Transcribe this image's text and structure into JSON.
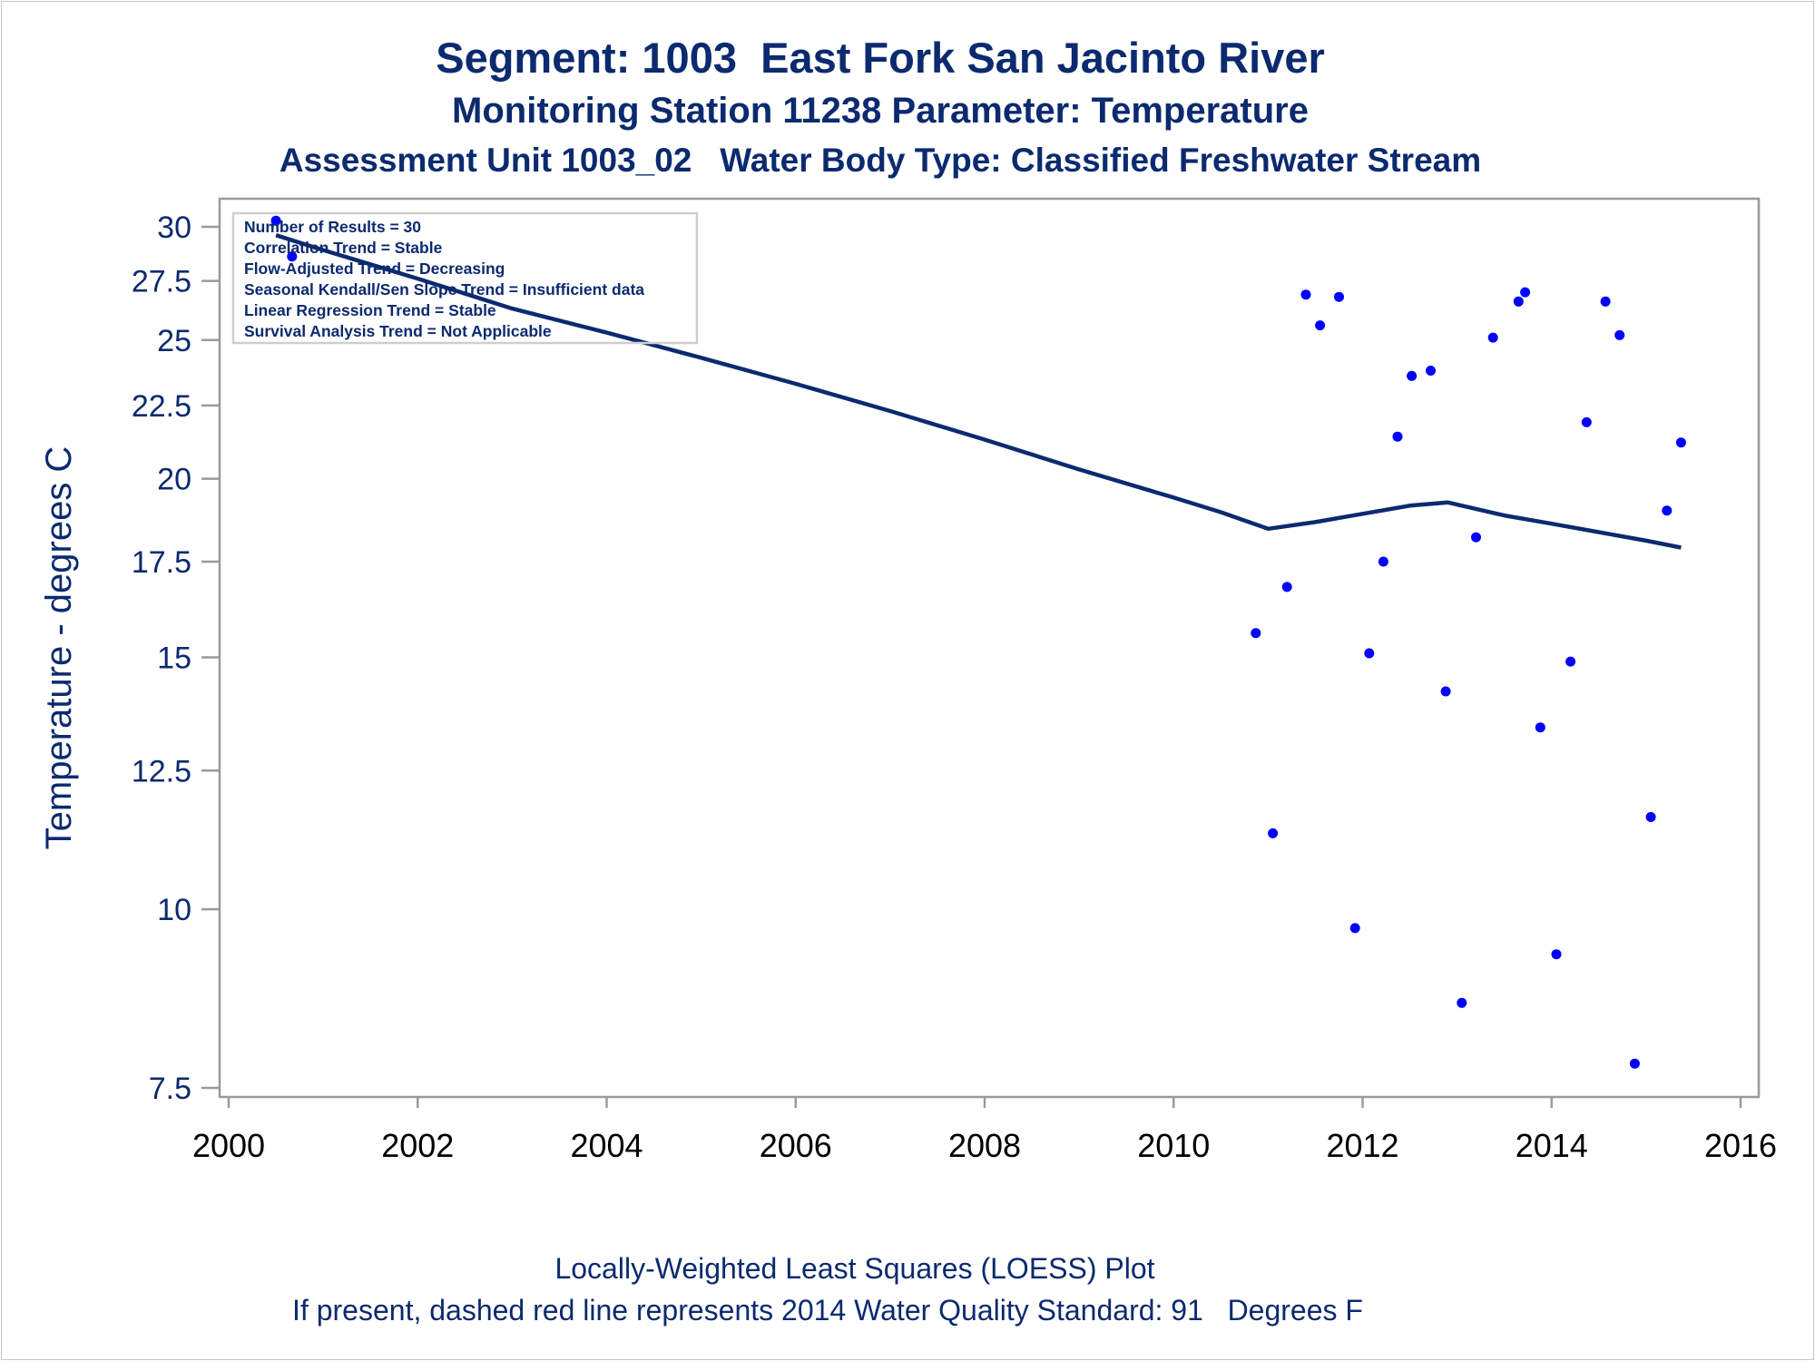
{
  "titles": {
    "line1": "Segment: 1003  East Fork San Jacinto River",
    "line2": "Monitoring Station 11238 Parameter: Temperature",
    "line3": "Assessment Unit 1003_02   Water Body Type: Classified Freshwater Stream"
  },
  "footnotes": {
    "line1": "Locally-Weighted Least Squares (LOESS) Plot",
    "line2": "If present, dashed red line represents 2014 Water Quality Standard: 91   Degrees F"
  },
  "stats_box": [
    "Number of Results = 30",
    "Correlation Trend = Stable",
    "Flow-Adjusted Trend = Decreasing",
    "Seasonal Kendall/Sen Slope Trend = Insufficient data",
    "Linear Regression Trend = Stable",
    "Survival Analysis Trend = Not Applicable"
  ],
  "colors": {
    "points": "#0000ff",
    "loess_line": "#0b2a6f",
    "text": "#0b2a6f",
    "axis": "#9a9a9a"
  },
  "chart_data": {
    "type": "scatter",
    "title": "Segment: 1003  East Fork San Jacinto River",
    "ylabel": "Temperature - degrees C",
    "xlabel": "",
    "y_scale": "log",
    "xlim": [
      2000,
      2016
    ],
    "ylim": [
      7.3,
      30.6
    ],
    "x_ticks": [
      2000,
      2002,
      2004,
      2006,
      2008,
      2010,
      2012,
      2014,
      2016
    ],
    "x_tick_labels": [
      "2000",
      "2002",
      "2004",
      "2006",
      "2008",
      "2010",
      "2012",
      "2014",
      "2016"
    ],
    "y_ticks": [
      7.5,
      10,
      12.5,
      15,
      17.5,
      20,
      22.5,
      25,
      27.5,
      30
    ],
    "y_tick_labels": [
      "7.5",
      "10",
      "12.5",
      "15",
      "17.5",
      "20",
      "22.5",
      "25",
      "27.5",
      "30"
    ],
    "grid": false,
    "legend": "none",
    "series": [
      {
        "type": "scatter",
        "x": [
          2000.5,
          2000.67,
          2010.87,
          2011.05,
          2011.2,
          2011.4,
          2011.55,
          2011.75,
          2011.92,
          2012.07,
          2012.22,
          2012.37,
          2012.52,
          2012.72,
          2012.88,
          2013.05,
          2013.2,
          2013.38,
          2013.65,
          2013.72,
          2013.88,
          2014.05,
          2014.2,
          2014.37,
          2014.57,
          2014.72,
          2014.88,
          2015.05,
          2015.22,
          2015.37
        ],
        "y": [
          30.3,
          28.6,
          15.6,
          11.3,
          16.8,
          26.9,
          25.6,
          26.8,
          9.7,
          15.1,
          17.5,
          21.4,
          23.6,
          23.8,
          14.2,
          8.6,
          18.2,
          25.1,
          26.6,
          27.0,
          13.4,
          9.3,
          14.9,
          21.9,
          26.6,
          25.2,
          7.8,
          11.6,
          19.0,
          21.2
        ]
      },
      {
        "type": "line",
        "x": [
          2000.5,
          2001,
          2002,
          2003,
          2004,
          2005,
          2006,
          2007,
          2008,
          2009,
          2010,
          2010.5,
          2011,
          2011.5,
          2012,
          2012.5,
          2012.9,
          2013.5,
          2014,
          2014.5,
          2015,
          2015.37
        ],
        "y": [
          29.6,
          28.9,
          27.6,
          26.3,
          25.3,
          24.3,
          23.3,
          22.3,
          21.3,
          20.3,
          19.4,
          18.95,
          18.45,
          18.65,
          18.9,
          19.15,
          19.25,
          18.85,
          18.6,
          18.35,
          18.1,
          17.9
        ]
      }
    ]
  }
}
